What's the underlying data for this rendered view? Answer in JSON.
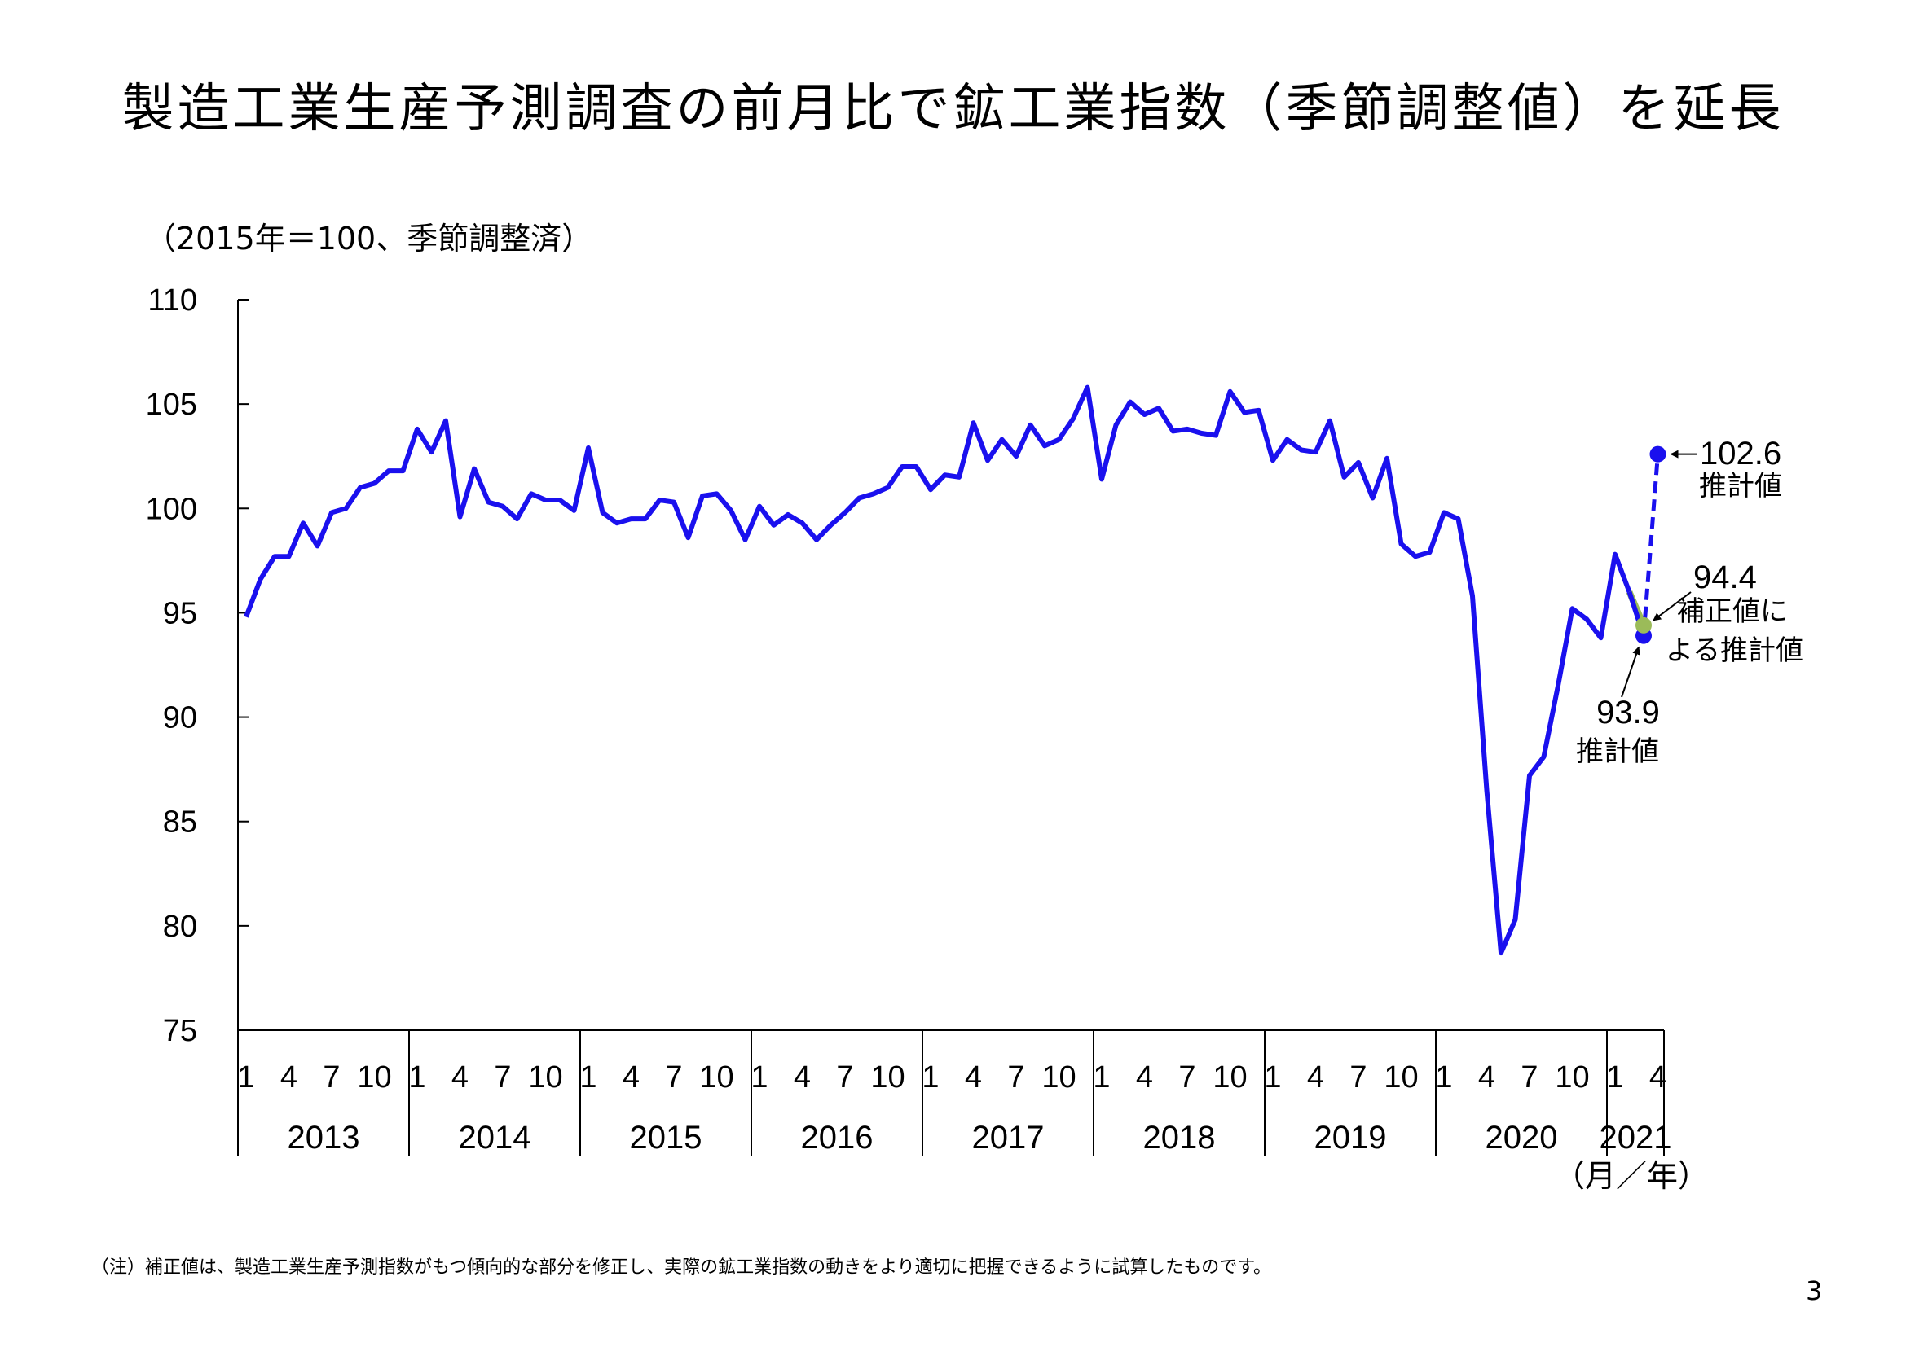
{
  "title": "製造工業生産予測調査の前月比で鉱工業指数（季節調整値）を延長",
  "unit_label": "（2015年＝100、季節調整済）",
  "axis_suffix": "（月／年）",
  "note": "（注）補正値は、製造工業生産予測指数がもつ傾向的な部分を修正し、実際の鉱工業指数の動きをより適切に把握できるように試算したものです。",
  "page_number": "3",
  "colors": {
    "actual": "#1a10ee",
    "estimate": "#1a10ee",
    "corrected": "#9bbb59"
  },
  "chart_data": {
    "type": "line",
    "ylim": [
      75,
      110
    ],
    "yticks": [
      "110",
      "105",
      "100",
      "95",
      "90",
      "85",
      "80",
      "75"
    ],
    "month_tick_labels": [
      "1",
      "4",
      "7",
      "10"
    ],
    "years": [
      "2013",
      "2014",
      "2015",
      "2016",
      "2017",
      "2018",
      "2019",
      "2020",
      "2021"
    ],
    "last_year_month_ticks": [
      "1",
      "4"
    ],
    "series": [
      {
        "values": [
          94.8,
          96.6,
          97.7,
          97.7,
          99.3,
          98.2,
          99.8,
          100.0,
          101.0,
          101.2,
          101.8,
          101.8,
          103.8,
          102.7,
          104.2,
          99.6,
          101.9,
          100.3,
          100.1,
          99.5,
          100.7,
          100.4,
          100.4,
          99.9,
          102.9,
          99.8,
          99.3,
          99.5,
          99.5,
          100.4,
          100.3,
          98.6,
          100.6,
          100.7,
          99.9,
          98.5,
          100.1,
          99.2,
          99.7,
          99.3,
          98.5,
          99.2,
          99.8,
          100.5,
          100.7,
          101.0,
          102.0,
          102.0,
          100.9,
          101.6,
          101.5,
          104.1,
          102.3,
          103.3,
          102.5,
          104.0,
          103.0,
          103.3,
          104.3,
          105.8,
          101.4,
          104.0,
          105.1,
          104.5,
          104.8,
          103.7,
          103.8,
          103.6,
          103.5,
          105.6,
          104.6,
          104.7,
          102.3,
          103.3,
          102.8,
          102.7,
          104.2,
          101.5,
          102.2,
          100.5,
          102.4,
          98.3,
          97.7,
          97.9,
          99.8,
          99.5,
          95.8,
          86.5,
          78.7,
          80.3,
          87.2,
          88.1,
          91.5,
          95.2,
          94.7,
          93.8,
          97.8,
          96.0
        ]
      },
      {
        "values": [
          96.0,
          93.9,
          102.6
        ]
      },
      {
        "values": [
          96.0,
          94.4
        ]
      }
    ],
    "annotations": [
      {
        "value": "102.6",
        "label": "推計値"
      },
      {
        "value": "94.4",
        "label1": "補正値に",
        "label2": "よる推計値"
      },
      {
        "value": "93.9",
        "label": "推計値"
      }
    ]
  }
}
